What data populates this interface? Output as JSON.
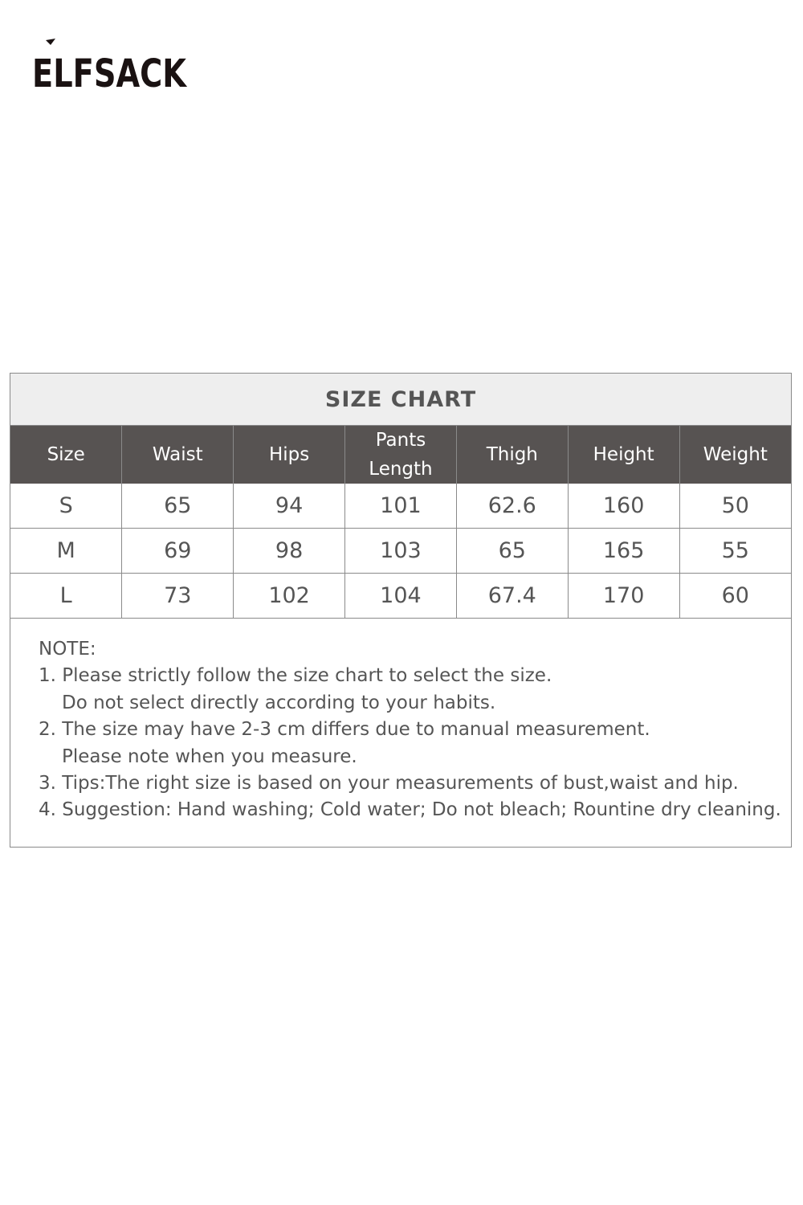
{
  "brand": {
    "logo_text": "ELFSACK"
  },
  "size_chart": {
    "title": "SIZE CHART",
    "headers": [
      "Size",
      "Waist",
      "Hips",
      "Pants Length",
      "Thigh",
      "Height",
      "Weight"
    ],
    "rows": [
      [
        "S",
        "65",
        "94",
        "101",
        "62.6",
        "160",
        "50"
      ],
      [
        "M",
        "69",
        "98",
        "103",
        "65",
        "165",
        "55"
      ],
      [
        "L",
        "73",
        "102",
        "104",
        "67.4",
        "170",
        "60"
      ]
    ],
    "header_color": "#575352",
    "title_band_color": "#eeeeee"
  },
  "notes": {
    "heading": "NOTE:",
    "lines": [
      "1. Please strictly follow the size chart to select the size.",
      "Do not select directly according to your habits.",
      "2. The size may have 2-3 cm differs due to manual measurement.",
      "Please note when you measure.",
      "3. Tips:The right size is based on your measurements of bust,waist and hip.",
      "4. Suggestion: Hand washing; Cold water; Do not bleach; Rountine dry cleaning."
    ]
  }
}
